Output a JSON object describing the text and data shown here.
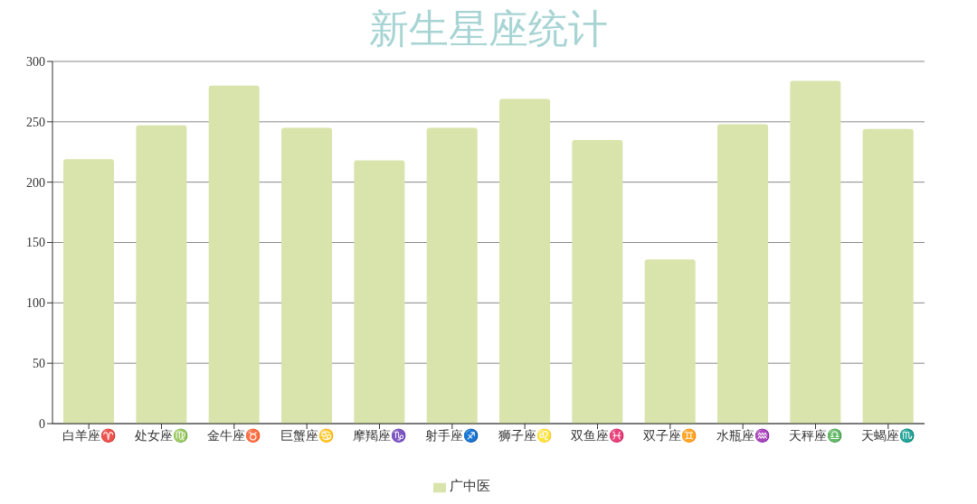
{
  "chart_data": {
    "type": "bar",
    "title": "新生星座统计",
    "categories": [
      "白羊座♈",
      "处女座♍",
      "金牛座♉",
      "巨蟹座♋",
      "摩羯座♑",
      "射手座♐",
      "狮子座♌",
      "双鱼座♓",
      "双子座♊",
      "水瓶座♒",
      "天秤座♎",
      "天蝎座♏"
    ],
    "series": [
      {
        "name": "广中医",
        "color": "#d8e4ab",
        "values": [
          219,
          247,
          280,
          245,
          218,
          245,
          269,
          235,
          136,
          248,
          284,
          244
        ]
      }
    ],
    "ylim": [
      0,
      300
    ],
    "yticks": [
      0,
      50,
      100,
      150,
      200,
      250,
      300
    ],
    "grid": "y",
    "legend": "bottom"
  }
}
